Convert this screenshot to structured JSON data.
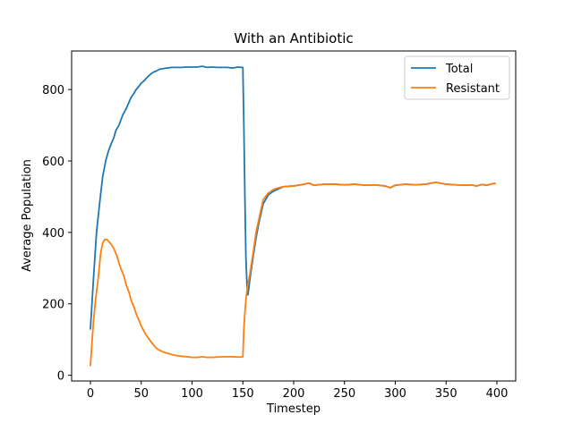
{
  "chart_data": {
    "type": "line",
    "title": "With an Antibiotic",
    "xlabel": "Timestep",
    "ylabel": "Average Population",
    "xlim": [
      -18.5,
      418.5
    ],
    "ylim": [
      -16,
      908
    ],
    "xticks": [
      0,
      50,
      100,
      150,
      200,
      250,
      300,
      350,
      400
    ],
    "yticks": [
      0,
      200,
      400,
      600,
      800
    ],
    "grid": false,
    "legend_position": "top-right",
    "series": [
      {
        "name": "Total",
        "color": "#1f77b4",
        "x": [
          0,
          3,
          6,
          9,
          12,
          15,
          18,
          20,
          23,
          25,
          28,
          30,
          32,
          35,
          38,
          40,
          43,
          45,
          48,
          50,
          53,
          55,
          58,
          60,
          63,
          65,
          68,
          70,
          75,
          80,
          85,
          90,
          95,
          100,
          105,
          110,
          115,
          120,
          125,
          130,
          135,
          140,
          145,
          149,
          150,
          151,
          152,
          153,
          154,
          155,
          157,
          160,
          163,
          166,
          170,
          175,
          180,
          185,
          190,
          200,
          210,
          215,
          220,
          230,
          240,
          250,
          260,
          270,
          280,
          290,
          295,
          300,
          310,
          320,
          330,
          335,
          340,
          350,
          360,
          370,
          375,
          380,
          385,
          390,
          395,
          398
        ],
        "values": [
          130,
          270,
          400,
          480,
          555,
          600,
          630,
          645,
          665,
          685,
          700,
          715,
          730,
          745,
          765,
          778,
          790,
          800,
          810,
          818,
          825,
          832,
          840,
          845,
          850,
          852,
          857,
          858,
          860,
          862,
          862,
          862,
          863,
          863,
          863,
          865,
          862,
          863,
          862,
          862,
          862,
          860,
          863,
          862,
          862,
          700,
          500,
          330,
          255,
          225,
          270,
          330,
          385,
          430,
          480,
          505,
          515,
          522,
          528,
          530,
          535,
          538,
          532,
          535,
          535,
          533,
          535,
          532,
          533,
          530,
          525,
          532,
          535,
          533,
          535,
          538,
          540,
          535,
          533,
          532,
          533,
          530,
          534,
          532,
          536,
          537
        ]
      },
      {
        "name": "Resistant",
        "color": "#ff7f0e",
        "x": [
          0,
          3,
          5,
          8,
          10,
          12,
          14,
          16,
          18,
          20,
          22,
          24,
          26,
          28,
          30,
          33,
          35,
          38,
          40,
          43,
          45,
          48,
          50,
          53,
          55,
          58,
          60,
          63,
          65,
          68,
          70,
          73,
          75,
          78,
          80,
          85,
          90,
          95,
          100,
          105,
          110,
          115,
          120,
          125,
          130,
          135,
          140,
          145,
          149,
          150,
          151,
          152,
          153,
          154,
          155,
          157,
          160,
          163,
          166,
          170,
          175,
          180,
          185,
          190,
          200,
          210,
          215,
          220,
          230,
          240,
          250,
          260,
          270,
          280,
          290,
          295,
          300,
          310,
          320,
          330,
          335,
          340,
          350,
          360,
          370,
          375,
          380,
          385,
          390,
          395,
          398
        ],
        "values": [
          28,
          150,
          210,
          280,
          340,
          370,
          380,
          380,
          375,
          368,
          360,
          348,
          335,
          315,
          298,
          278,
          255,
          232,
          210,
          190,
          172,
          152,
          138,
          122,
          112,
          100,
          92,
          82,
          75,
          70,
          67,
          64,
          62,
          60,
          58,
          55,
          53,
          52,
          50,
          50,
          52,
          50,
          50,
          51,
          52,
          52,
          52,
          51,
          51,
          52,
          130,
          175,
          210,
          235,
          255,
          285,
          340,
          400,
          440,
          492,
          510,
          520,
          525,
          528,
          530,
          535,
          538,
          532,
          535,
          535,
          533,
          535,
          532,
          533,
          530,
          525,
          532,
          535,
          533,
          535,
          538,
          540,
          535,
          533,
          532,
          533,
          530,
          534,
          532,
          536,
          537
        ]
      }
    ]
  }
}
